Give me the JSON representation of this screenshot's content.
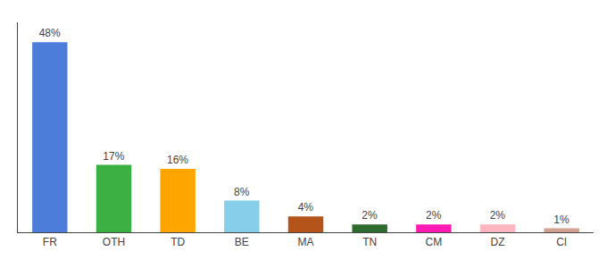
{
  "chart_data": {
    "type": "bar",
    "categories": [
      "FR",
      "OTH",
      "TD",
      "BE",
      "MA",
      "TN",
      "CM",
      "DZ",
      "CI"
    ],
    "values": [
      48,
      17,
      16,
      8,
      4,
      2,
      2,
      2,
      1
    ],
    "value_labels": [
      "48%",
      "17%",
      "16%",
      "8%",
      "4%",
      "2%",
      "2%",
      "2%",
      "1%"
    ],
    "colors": [
      "#4d7ddb",
      "#3cb043",
      "#ffa500",
      "#87ceeb",
      "#b5541a",
      "#2e6b2e",
      "#ff1ab3",
      "#ffb6c1",
      "#d2a090"
    ],
    "data_labels": true,
    "ylim": [
      0,
      53
    ],
    "tick_labels": "x",
    "grid": false
  }
}
